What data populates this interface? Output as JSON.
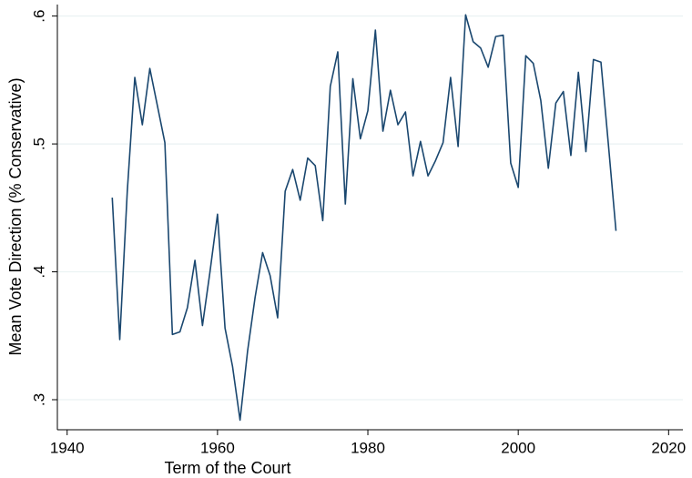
{
  "chart_data": {
    "type": "line",
    "x_label": "Term of the Court",
    "y_label": "Mean Vote Direction (% Conservative)",
    "x": [
      1946,
      1947,
      1948,
      1949,
      1950,
      1951,
      1952,
      1953,
      1954,
      1955,
      1956,
      1957,
      1958,
      1959,
      1960,
      1961,
      1962,
      1963,
      1964,
      1965,
      1966,
      1967,
      1968,
      1969,
      1970,
      1971,
      1972,
      1973,
      1974,
      1975,
      1976,
      1977,
      1978,
      1979,
      1980,
      1981,
      1982,
      1983,
      1984,
      1985,
      1986,
      1987,
      1988,
      1989,
      1990,
      1991,
      1992,
      1993,
      1994,
      1995,
      1996,
      1997,
      1998,
      1999,
      2000,
      2001,
      2002,
      2003,
      2004,
      2005,
      2006,
      2007,
      2008,
      2009,
      2010,
      2011,
      2012,
      2013
    ],
    "values": [
      0.458,
      0.347,
      0.463,
      0.552,
      0.515,
      0.559,
      0.53,
      0.501,
      0.351,
      0.353,
      0.372,
      0.409,
      0.358,
      0.4,
      0.445,
      0.356,
      0.326,
      0.284,
      0.338,
      0.38,
      0.415,
      0.397,
      0.364,
      0.463,
      0.48,
      0.456,
      0.489,
      0.483,
      0.44,
      0.545,
      0.572,
      0.453,
      0.551,
      0.504,
      0.526,
      0.589,
      0.51,
      0.542,
      0.515,
      0.525,
      0.475,
      0.502,
      0.475,
      0.487,
      0.501,
      0.552,
      0.498,
      0.601,
      0.58,
      0.575,
      0.56,
      0.584,
      0.585,
      0.485,
      0.466,
      0.569,
      0.563,
      0.534,
      0.481,
      0.532,
      0.541,
      0.491,
      0.556,
      0.494,
      0.566,
      0.564,
      0.499,
      0.432
    ],
    "color": "#1a476f",
    "xlim": [
      1938.7,
      2021.9
    ],
    "xticks": [
      1940,
      1960,
      1980,
      2000,
      2020
    ],
    "ylim": [
      0.2765,
      0.609
    ],
    "yticks": [
      {
        "value": 0.3,
        "label": ".3"
      },
      {
        "value": 0.4,
        "label": ".4"
      },
      {
        "value": 0.5,
        "label": ".5"
      },
      {
        "value": 0.6,
        "label": ".6"
      }
    ],
    "grid": true
  }
}
